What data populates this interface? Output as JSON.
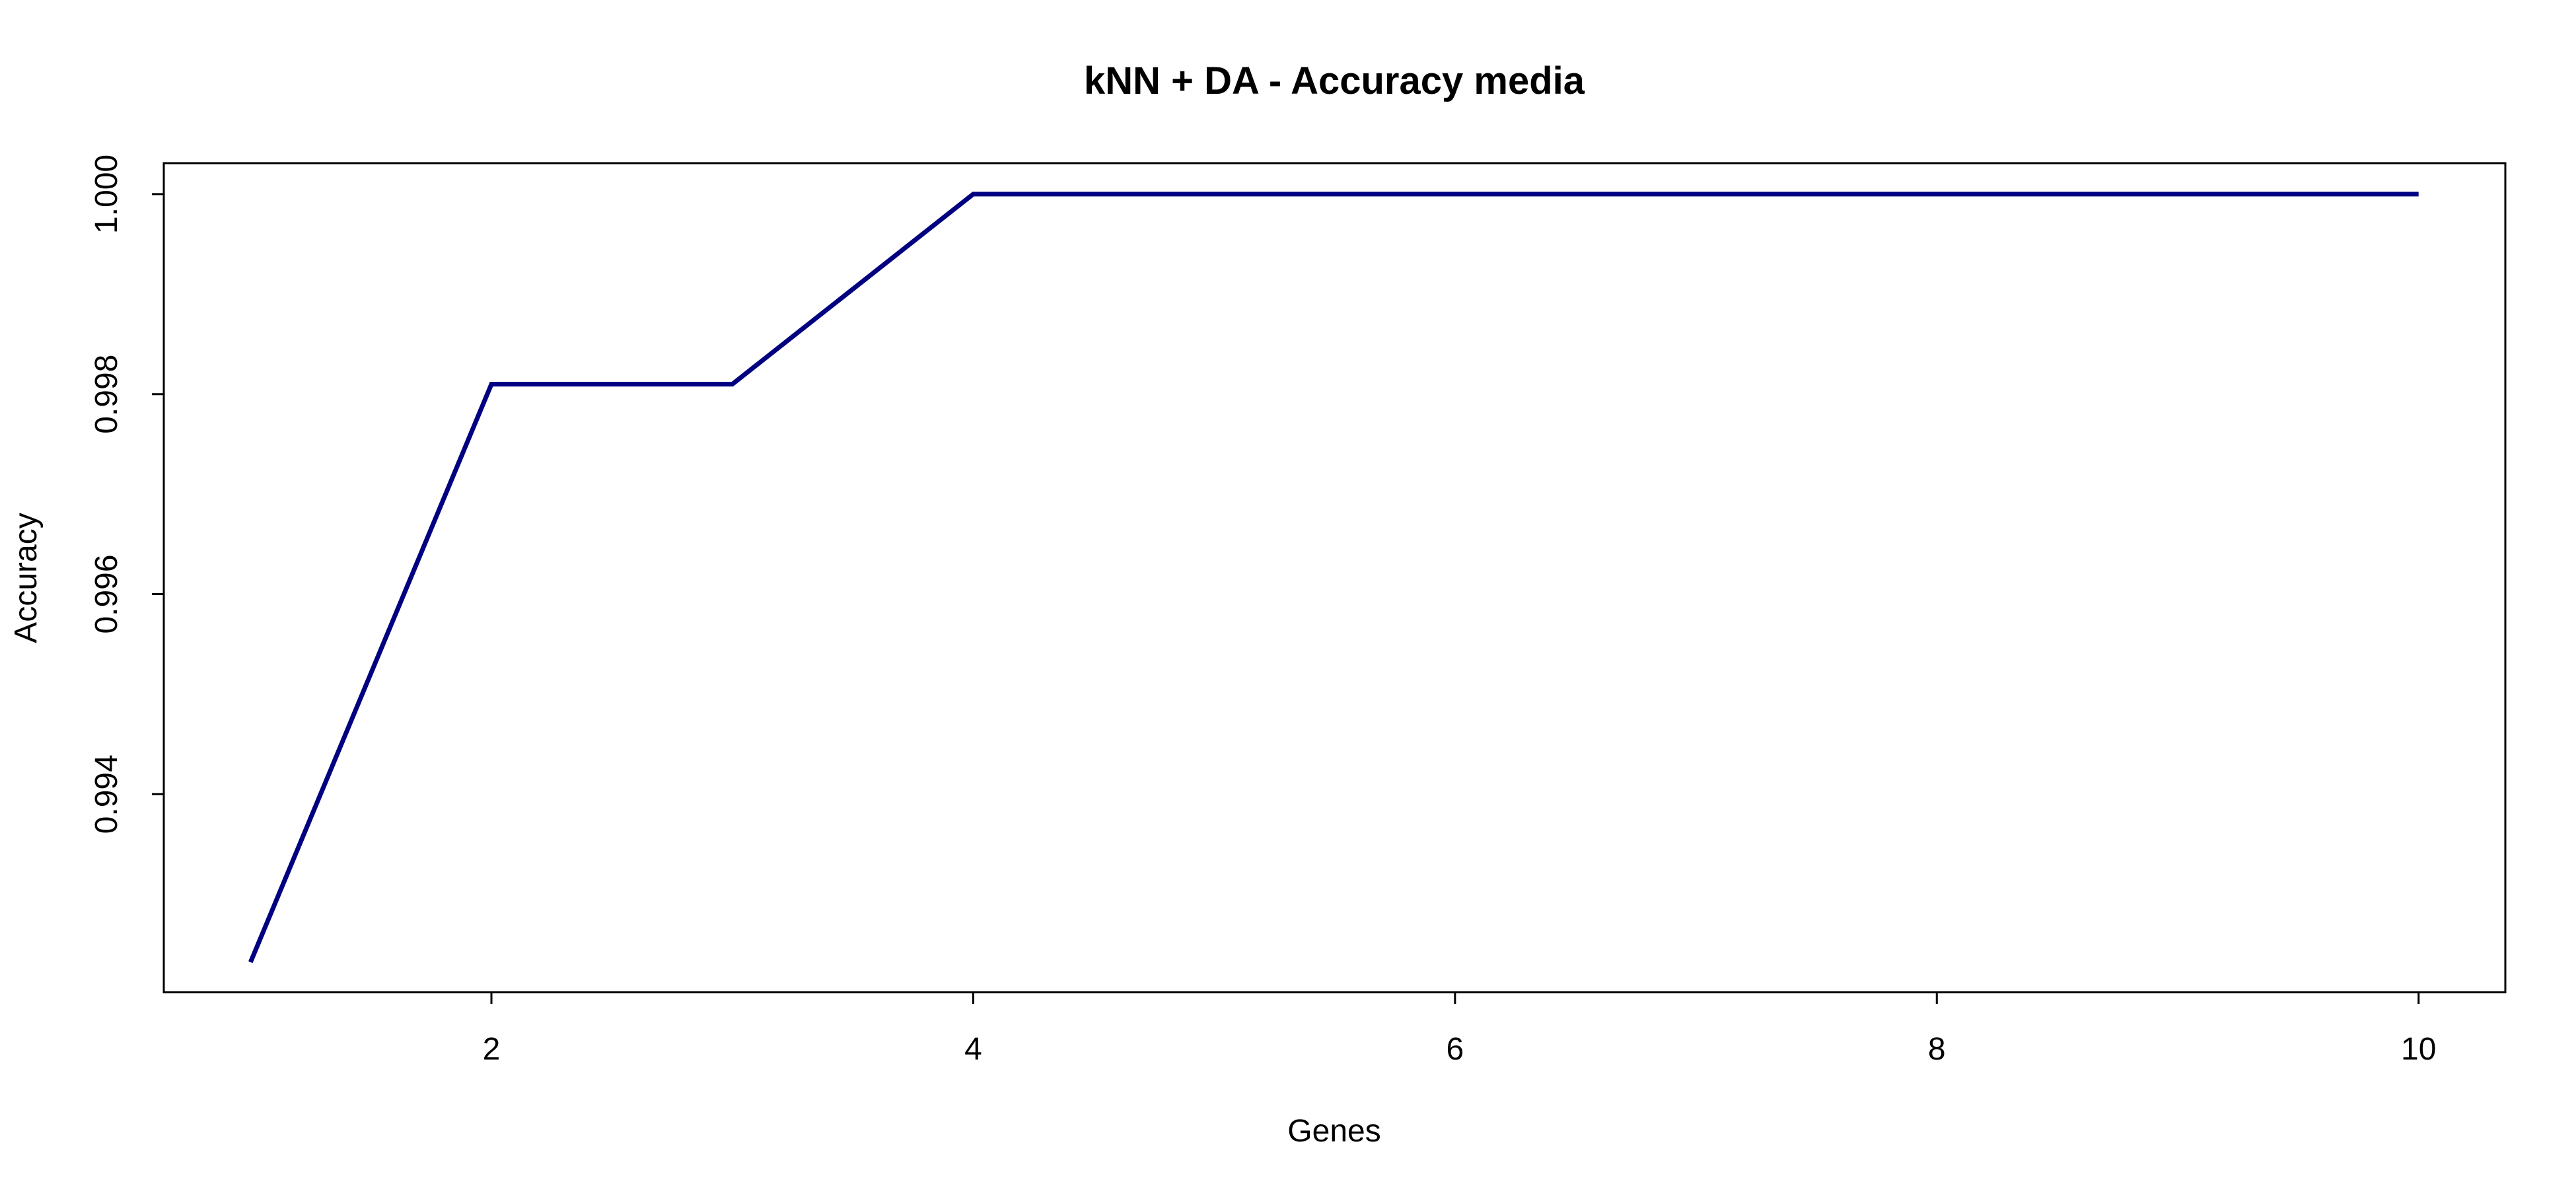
{
  "chart_data": {
    "type": "line",
    "title": "kNN + DA - Accuracy media",
    "xlabel": "Genes",
    "ylabel": "Accuracy",
    "x": [
      1,
      2,
      3,
      4,
      5,
      6,
      7,
      8,
      9,
      10
    ],
    "series": [
      {
        "values": [
          0.99232,
          0.9981,
          0.9981,
          1.0,
          1.0,
          1.0,
          1.0,
          1.0,
          1.0,
          1.0
        ],
        "color": "#000080"
      }
    ],
    "xlim": [
      0.64,
      10.36
    ],
    "ylim": [
      0.99202,
      1.00031
    ],
    "x_ticks": [
      2,
      4,
      6,
      8,
      10
    ],
    "x_tick_labels": [
      "2",
      "4",
      "6",
      "8",
      "10"
    ],
    "y_ticks": [
      0.994,
      0.996,
      0.998,
      1.0
    ],
    "y_tick_labels": [
      "0.994",
      "0.996",
      "0.998",
      "1.000"
    ],
    "grid": false,
    "legend": "none"
  }
}
